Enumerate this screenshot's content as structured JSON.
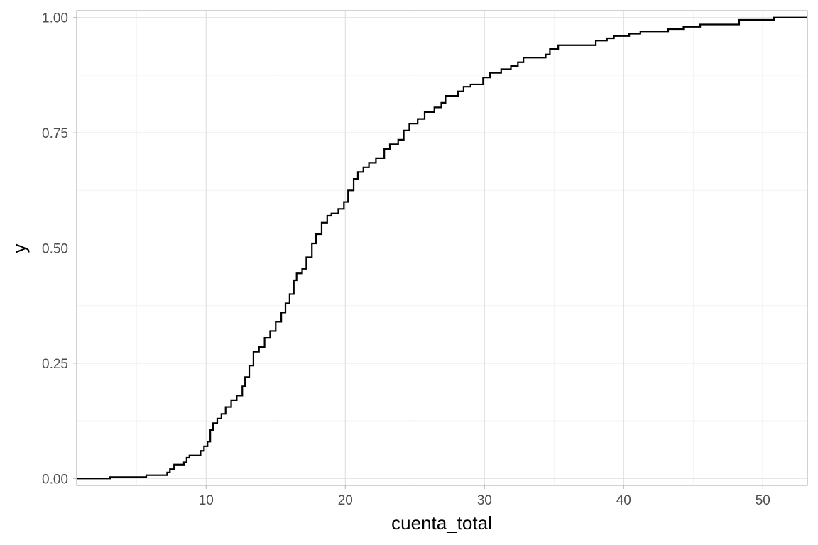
{
  "chart_data": {
    "type": "line",
    "subtype": "step-ecdf",
    "title": "",
    "xlabel": "cuenta_total",
    "ylabel": "y",
    "xlim": [
      0.7,
      53.2
    ],
    "ylim": [
      -0.015,
      1.015
    ],
    "x_ticks": [
      10,
      20,
      30,
      40,
      50
    ],
    "x_tick_labels": [
      "10",
      "20",
      "30",
      "40",
      "50"
    ],
    "y_ticks": [
      0,
      0.25,
      0.5,
      0.75,
      1
    ],
    "y_tick_labels": [
      "0.00",
      "0.25",
      "0.50",
      "0.75",
      "1.00"
    ],
    "grid": true,
    "line_color": "#000000",
    "points": [
      [
        0.7,
        0
      ],
      [
        3.1,
        0.003
      ],
      [
        5.7,
        0.007
      ],
      [
        7.2,
        0.013
      ],
      [
        7.4,
        0.02
      ],
      [
        7.7,
        0.03
      ],
      [
        8.4,
        0.035
      ],
      [
        8.6,
        0.045
      ],
      [
        8.8,
        0.05
      ],
      [
        9.6,
        0.06
      ],
      [
        9.85,
        0.07
      ],
      [
        10.1,
        0.08
      ],
      [
        10.3,
        0.105
      ],
      [
        10.5,
        0.12
      ],
      [
        10.8,
        0.13
      ],
      [
        11.1,
        0.14
      ],
      [
        11.4,
        0.155
      ],
      [
        11.8,
        0.17
      ],
      [
        12.2,
        0.18
      ],
      [
        12.6,
        0.2
      ],
      [
        12.8,
        0.22
      ],
      [
        13.1,
        0.245
      ],
      [
        13.4,
        0.275
      ],
      [
        13.8,
        0.285
      ],
      [
        14.2,
        0.305
      ],
      [
        14.6,
        0.32
      ],
      [
        15.0,
        0.34
      ],
      [
        15.4,
        0.36
      ],
      [
        15.7,
        0.38
      ],
      [
        16.0,
        0.4
      ],
      [
        16.3,
        0.43
      ],
      [
        16.5,
        0.445
      ],
      [
        16.9,
        0.455
      ],
      [
        17.2,
        0.48
      ],
      [
        17.6,
        0.51
      ],
      [
        17.9,
        0.53
      ],
      [
        18.3,
        0.555
      ],
      [
        18.7,
        0.57
      ],
      [
        19.0,
        0.575
      ],
      [
        19.5,
        0.585
      ],
      [
        19.9,
        0.6
      ],
      [
        20.2,
        0.625
      ],
      [
        20.6,
        0.65
      ],
      [
        20.9,
        0.665
      ],
      [
        21.3,
        0.675
      ],
      [
        21.7,
        0.685
      ],
      [
        22.2,
        0.695
      ],
      [
        22.8,
        0.715
      ],
      [
        23.2,
        0.725
      ],
      [
        23.8,
        0.735
      ],
      [
        24.2,
        0.755
      ],
      [
        24.6,
        0.77
      ],
      [
        25.2,
        0.78
      ],
      [
        25.7,
        0.795
      ],
      [
        26.4,
        0.805
      ],
      [
        26.9,
        0.815
      ],
      [
        27.2,
        0.83
      ],
      [
        28.1,
        0.84
      ],
      [
        28.5,
        0.85
      ],
      [
        29.0,
        0.855
      ],
      [
        29.9,
        0.87
      ],
      [
        30.4,
        0.88
      ],
      [
        31.2,
        0.888
      ],
      [
        31.9,
        0.895
      ],
      [
        32.4,
        0.903
      ],
      [
        32.8,
        0.913
      ],
      [
        34.4,
        0.92
      ],
      [
        34.7,
        0.932
      ],
      [
        35.3,
        0.94
      ],
      [
        38.0,
        0.95
      ],
      [
        38.8,
        0.955
      ],
      [
        39.3,
        0.96
      ],
      [
        40.4,
        0.965
      ],
      [
        41.2,
        0.97
      ],
      [
        43.2,
        0.975
      ],
      [
        44.3,
        0.98
      ],
      [
        45.5,
        0.985
      ],
      [
        48.3,
        0.995
      ],
      [
        50.8,
        1.0
      ],
      [
        53.2,
        1.0
      ]
    ]
  }
}
